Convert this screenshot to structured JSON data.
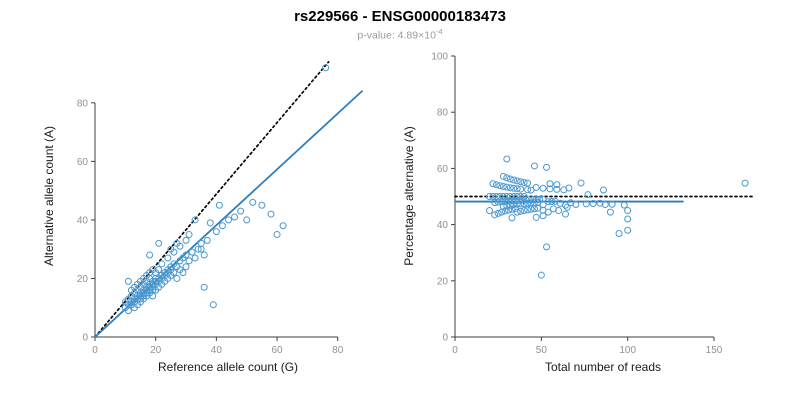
{
  "title": "rs229566 - ENSG00000183473",
  "subtitle": {
    "base": "p-value: 4.89×10",
    "exponent": "-4"
  },
  "colors": {
    "point": "#4a98d0",
    "fit_line": "#2e7ebc",
    "ref_line": "#000000",
    "axis": "#3f3f3f",
    "tick_label": "#919191",
    "subtitle": "#9b9b9b"
  },
  "chart_data": [
    {
      "type": "scatter",
      "name": "allele-counts-scatter",
      "xlabel": "Reference allele count (G)",
      "ylabel": "Alternative allele count (A)",
      "xlim": [
        0,
        88
      ],
      "ylim": [
        0,
        96
      ],
      "xticks": [
        0,
        20,
        40,
        60,
        80
      ],
      "yticks": [
        0,
        20,
        40,
        60,
        80
      ],
      "grid": false,
      "legend": "none",
      "points": [
        [
          10,
          10
        ],
        [
          10,
          12
        ],
        [
          11,
          9
        ],
        [
          11,
          11
        ],
        [
          11,
          13
        ],
        [
          11,
          19
        ],
        [
          12,
          11
        ],
        [
          12,
          12
        ],
        [
          12,
          14
        ],
        [
          12,
          16
        ],
        [
          13,
          10
        ],
        [
          13,
          12
        ],
        [
          13,
          13
        ],
        [
          13,
          15
        ],
        [
          13,
          17
        ],
        [
          14,
          11
        ],
        [
          14,
          13
        ],
        [
          14,
          14
        ],
        [
          14,
          16
        ],
        [
          14,
          18
        ],
        [
          15,
          12
        ],
        [
          15,
          13
        ],
        [
          15,
          14
        ],
        [
          15,
          15
        ],
        [
          15,
          17
        ],
        [
          15,
          19
        ],
        [
          16,
          13
        ],
        [
          16,
          14
        ],
        [
          16,
          15
        ],
        [
          16,
          16
        ],
        [
          16,
          18
        ],
        [
          16,
          20
        ],
        [
          17,
          14
        ],
        [
          17,
          15
        ],
        [
          17,
          16
        ],
        [
          17,
          17
        ],
        [
          17,
          19
        ],
        [
          17,
          21
        ],
        [
          18,
          15
        ],
        [
          18,
          16
        ],
        [
          18,
          17
        ],
        [
          18,
          18
        ],
        [
          18,
          20
        ],
        [
          18,
          22
        ],
        [
          18,
          28
        ],
        [
          19,
          14
        ],
        [
          19,
          16
        ],
        [
          19,
          17
        ],
        [
          19,
          18
        ],
        [
          19,
          19
        ],
        [
          19,
          23
        ],
        [
          20,
          16
        ],
        [
          20,
          18
        ],
        [
          20,
          19
        ],
        [
          20,
          20
        ],
        [
          20,
          22
        ],
        [
          21,
          17
        ],
        [
          21,
          19
        ],
        [
          21,
          20
        ],
        [
          21,
          23
        ],
        [
          21,
          32
        ],
        [
          22,
          18
        ],
        [
          22,
          20
        ],
        [
          22,
          21
        ],
        [
          22,
          25
        ],
        [
          23,
          19
        ],
        [
          23,
          21
        ],
        [
          23,
          22
        ],
        [
          24,
          20
        ],
        [
          24,
          22
        ],
        [
          24,
          23
        ],
        [
          24,
          27
        ],
        [
          25,
          21
        ],
        [
          25,
          23
        ],
        [
          25,
          24
        ],
        [
          25,
          30
        ],
        [
          26,
          22
        ],
        [
          26,
          25
        ],
        [
          26,
          29
        ],
        [
          27,
          20
        ],
        [
          27,
          24
        ],
        [
          27,
          32
        ],
        [
          28,
          23
        ],
        [
          28,
          26
        ],
        [
          28,
          31
        ],
        [
          29,
          22
        ],
        [
          29,
          27
        ],
        [
          30,
          24
        ],
        [
          30,
          28
        ],
        [
          30,
          33
        ],
        [
          31,
          26
        ],
        [
          31,
          35
        ],
        [
          32,
          29
        ],
        [
          33,
          27
        ],
        [
          33,
          40
        ],
        [
          34,
          30
        ],
        [
          35,
          30
        ],
        [
          35,
          32
        ],
        [
          36,
          17
        ],
        [
          36,
          28
        ],
        [
          37,
          33
        ],
        [
          38,
          39
        ],
        [
          39,
          11
        ],
        [
          40,
          36
        ],
        [
          41,
          45
        ],
        [
          42,
          38
        ],
        [
          44,
          40
        ],
        [
          46,
          41
        ],
        [
          48,
          43
        ],
        [
          50,
          40
        ],
        [
          52,
          46
        ],
        [
          55,
          45
        ],
        [
          58,
          42
        ],
        [
          60,
          35
        ],
        [
          62,
          38
        ],
        [
          76,
          92
        ]
      ],
      "lines": [
        {
          "name": "identity-reference",
          "style": "dotted",
          "color": "#000000",
          "x1": 0,
          "y1": 0,
          "x2": 77,
          "y2": 94
        },
        {
          "name": "regression-fit",
          "style": "solid",
          "color": "#2e7ebc",
          "x1": 0,
          "y1": 0,
          "x2": 88,
          "y2": 84
        }
      ]
    },
    {
      "type": "scatter",
      "name": "percentage-vs-depth-scatter",
      "xlabel": "Total number of reads",
      "ylabel": "Percentage alternative (A)",
      "xlim": [
        0,
        172
      ],
      "ylim": [
        0,
        100
      ],
      "xticks": [
        0,
        50,
        100,
        150
      ],
      "yticks": [
        0,
        20,
        40,
        60,
        80,
        100
      ],
      "grid": false,
      "legend": "none",
      "points_derived": {
        "from": "chart_data[0].points",
        "x": "ref + alt (total reads)",
        "y": "100 * alt / (ref + alt) (percentage alternative)"
      },
      "lines": [
        {
          "name": "null-50-percent",
          "style": "dotted",
          "color": "#000000",
          "x1": 0,
          "y1": 50,
          "x2": 172,
          "y2": 50
        },
        {
          "name": "mean-fit",
          "style": "solid",
          "color": "#2e7ebc",
          "x1": 0,
          "y1": 48.2,
          "x2": 132,
          "y2": 48.2
        }
      ]
    }
  ]
}
